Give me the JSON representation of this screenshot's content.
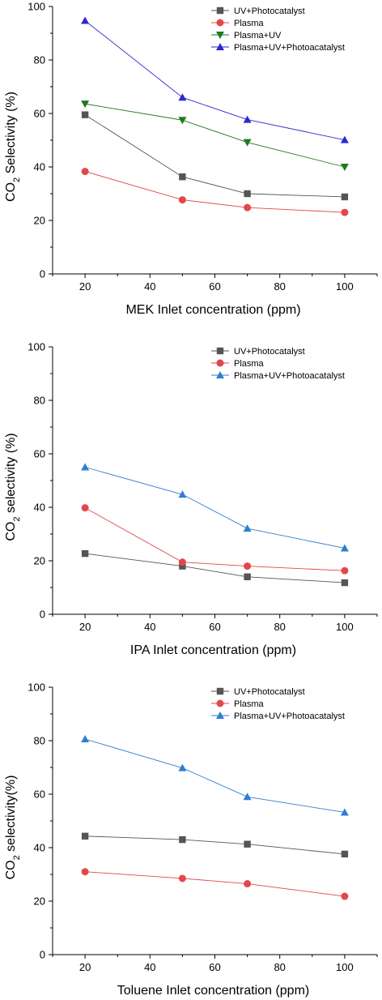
{
  "chart_data": [
    {
      "type": "line",
      "xlabel": "MEK Inlet concentration (ppm)",
      "ylabel_parts": [
        "CO",
        "2",
        " Selectivity (%)"
      ],
      "xlim": [
        10,
        110
      ],
      "ylim": [
        0,
        100
      ],
      "xticks": [
        20,
        40,
        60,
        80,
        100
      ],
      "yticks": [
        0,
        20,
        40,
        60,
        80,
        100
      ],
      "legend_position": "top-right",
      "x": [
        20,
        50,
        70,
        100
      ],
      "series": [
        {
          "name": "UV+Photocatalyst",
          "color": "#555555",
          "marker": "square",
          "values": [
            59.5,
            36.3,
            30.0,
            28.8
          ]
        },
        {
          "name": "Plasma",
          "color": "#e2474b",
          "marker": "circle",
          "values": [
            38.3,
            27.7,
            24.8,
            23.0
          ]
        },
        {
          "name": "Plasma+UV",
          "color": "#1f7a1f",
          "marker": "triangle-down",
          "values": [
            63.6,
            57.5,
            49.2,
            40.0
          ]
        },
        {
          "name": "Plasma+UV+Photoacatalyst",
          "color": "#2a2ad0",
          "marker": "triangle-up",
          "values": [
            94.7,
            66.0,
            57.7,
            50.1
          ]
        }
      ]
    },
    {
      "type": "line",
      "xlabel": "IPA Inlet concentration (ppm)",
      "ylabel_parts": [
        "CO",
        "2",
        " selectivity (%)"
      ],
      "xlim": [
        10,
        110
      ],
      "ylim": [
        0,
        100
      ],
      "xticks": [
        20,
        40,
        60,
        80,
        100
      ],
      "yticks": [
        0,
        20,
        40,
        60,
        80,
        100
      ],
      "legend_position": "top-right",
      "x": [
        20,
        50,
        70,
        100
      ],
      "series": [
        {
          "name": "UV+Photocatalyst",
          "color": "#555555",
          "marker": "square",
          "values": [
            22.7,
            18.0,
            14.0,
            11.8
          ]
        },
        {
          "name": "Plasma",
          "color": "#e2474b",
          "marker": "circle",
          "values": [
            39.8,
            19.5,
            18.0,
            16.3
          ]
        },
        {
          "name": "Plasma+UV+Photoacatalyst",
          "color": "#2f7fcf",
          "marker": "triangle-up",
          "values": [
            55.0,
            44.8,
            32.1,
            24.7
          ]
        }
      ]
    },
    {
      "type": "line",
      "xlabel": "Toluene Inlet concentration (ppm)",
      "ylabel_parts": [
        "CO",
        "2",
        " selectivity(%)"
      ],
      "xlim": [
        10,
        110
      ],
      "ylim": [
        0,
        100
      ],
      "xticks": [
        20,
        40,
        60,
        80,
        100
      ],
      "yticks": [
        0,
        20,
        40,
        60,
        80,
        100
      ],
      "legend_position": "top-right",
      "x": [
        20,
        50,
        70,
        100
      ],
      "series": [
        {
          "name": "UV+Photocatalyst",
          "color": "#555555",
          "marker": "square",
          "values": [
            44.3,
            43.0,
            41.3,
            37.6
          ]
        },
        {
          "name": "Plasma",
          "color": "#e2474b",
          "marker": "circle",
          "values": [
            31.0,
            28.5,
            26.5,
            21.8
          ]
        },
        {
          "name": "Plasma+UV+Photoacatalyst",
          "color": "#2f7fcf",
          "marker": "triangle-up",
          "values": [
            80.6,
            69.8,
            59.0,
            53.2
          ]
        }
      ]
    }
  ]
}
